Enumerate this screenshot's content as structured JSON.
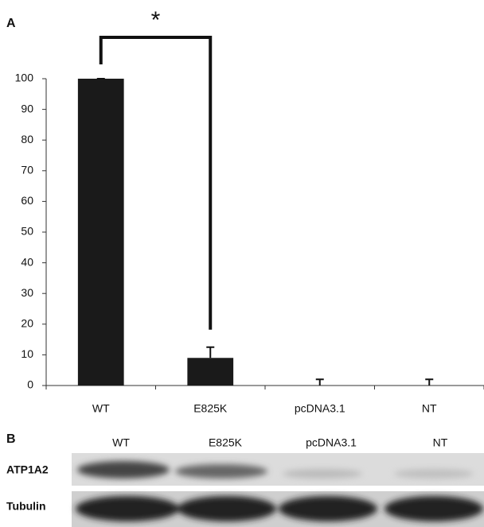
{
  "chart_data": {
    "type": "bar",
    "panel_label": "A",
    "annotation": "*",
    "categories": [
      "WT",
      "E825K",
      "pcDNA3.1",
      "NT"
    ],
    "values": [
      100,
      9,
      0,
      0
    ],
    "errors": [
      0,
      3.5,
      2,
      2
    ],
    "color": "#1a1a1a",
    "ylim": [
      0,
      100
    ],
    "yticks": [
      0,
      10,
      20,
      30,
      40,
      50,
      60,
      70,
      80,
      90,
      100
    ],
    "grid": false
  },
  "blot": {
    "panel_label": "B",
    "columns": [
      "WT",
      "E825K",
      "pcDNA3.1",
      "NT"
    ],
    "rows": [
      "ATP1A2",
      "Tubulin"
    ]
  }
}
